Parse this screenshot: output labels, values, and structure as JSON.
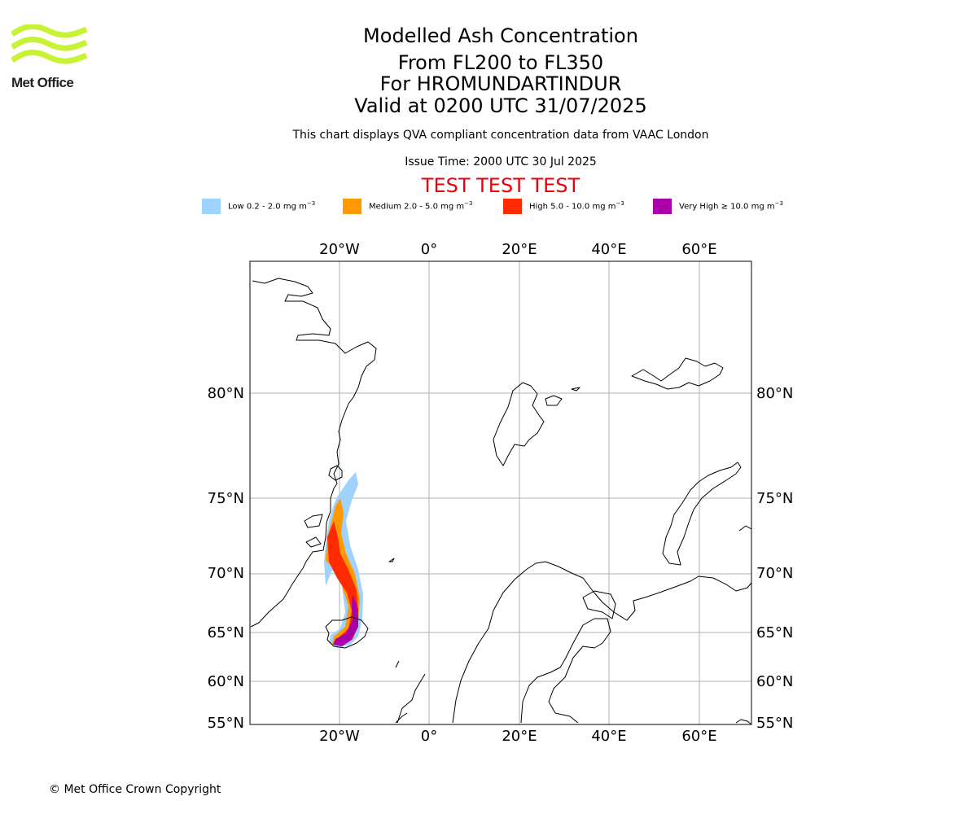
{
  "logo": {
    "text": "Met Office",
    "color": "#c8f234"
  },
  "header": {
    "title": "Modelled Ash Concentration",
    "levels": "From FL200 to FL350",
    "volcano": "For HROMUNDARTINDUR",
    "valid": "Valid at 0200 UTC 31/07/2025",
    "description": "This chart displays QVA compliant concentration data from VAAC London",
    "issue_time": "Issue Time: 2000 UTC 30 Jul 2025",
    "test_banner": "TEST TEST TEST"
  },
  "legend": [
    {
      "label": "Low 0.2 - 2.0 mg m",
      "unit_exp": "−3",
      "color": "#a0d2ff"
    },
    {
      "label": "Medium 2.0 - 5.0 mg m",
      "unit_exp": "−3",
      "color": "#ff9900"
    },
    {
      "label": "High 5.0 - 10.0 mg m",
      "unit_exp": "−3",
      "color": "#ff2a00"
    },
    {
      "label": "Very High  ≥  10.0 mg m",
      "unit_exp": "−3",
      "color": "#aa00aa"
    }
  ],
  "map": {
    "projection": "polar stereographic",
    "grid": true,
    "lon_ticks": [
      "20°W",
      "0°",
      "20°E",
      "40°E",
      "60°E"
    ],
    "lat_ticks": [
      "80°N",
      "75°N",
      "70°N",
      "65°N",
      "60°N",
      "55°N"
    ]
  },
  "footer": {
    "copyright": "© Met Office Crown Copyright"
  }
}
